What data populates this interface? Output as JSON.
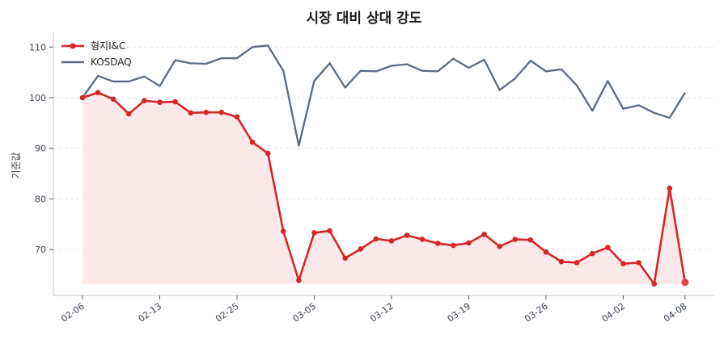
{
  "chart_data": {
    "type": "line",
    "title": "시장 대비 상대 강도",
    "xlabel": "",
    "ylabel": "기준값",
    "ylim": [
      61.5,
      112.5
    ],
    "yticks": [
      70,
      80,
      90,
      100,
      110
    ],
    "grid": "horizontal dashed",
    "legend_position": "upper left",
    "xtick_labels": [
      "02-06",
      "02-13",
      "02-25",
      "03-05",
      "03-12",
      "03-19",
      "03-26",
      "04-02",
      "04-08"
    ],
    "xtick_indices": [
      0,
      5,
      10,
      15,
      20,
      25,
      30,
      35,
      39
    ],
    "series": [
      {
        "name": "형지I&C",
        "color": "#d62728",
        "marker": "circle",
        "fill": "#fbe9e9",
        "values": [
          100.0,
          101.0,
          99.7,
          96.8,
          99.4,
          99.1,
          99.2,
          97.0,
          97.1,
          97.1,
          96.2,
          91.2,
          89.0,
          73.6,
          63.9,
          73.3,
          73.7,
          68.3,
          70.1,
          72.1,
          71.7,
          72.8,
          72.0,
          71.2,
          70.8,
          71.3,
          73.0,
          70.6,
          72.0,
          71.9,
          69.5,
          67.6,
          67.4,
          69.2,
          70.4,
          67.2,
          67.4,
          63.2,
          82.1,
          63.5
        ]
      },
      {
        "name": "KOSDAQ",
        "color": "#5a6b82",
        "marker": "none",
        "values": [
          100.0,
          104.3,
          103.2,
          103.2,
          104.2,
          102.3,
          107.4,
          106.8,
          106.7,
          107.8,
          107.8,
          110.0,
          110.3,
          105.3,
          90.5,
          103.3,
          106.8,
          102.0,
          105.3,
          105.2,
          106.3,
          106.6,
          105.3,
          105.2,
          107.7,
          105.9,
          107.5,
          101.5,
          103.8,
          107.3,
          105.2,
          105.6,
          102.4,
          97.4,
          103.3,
          97.8,
          98.5,
          97.0,
          96.0,
          101.0
        ]
      }
    ]
  }
}
